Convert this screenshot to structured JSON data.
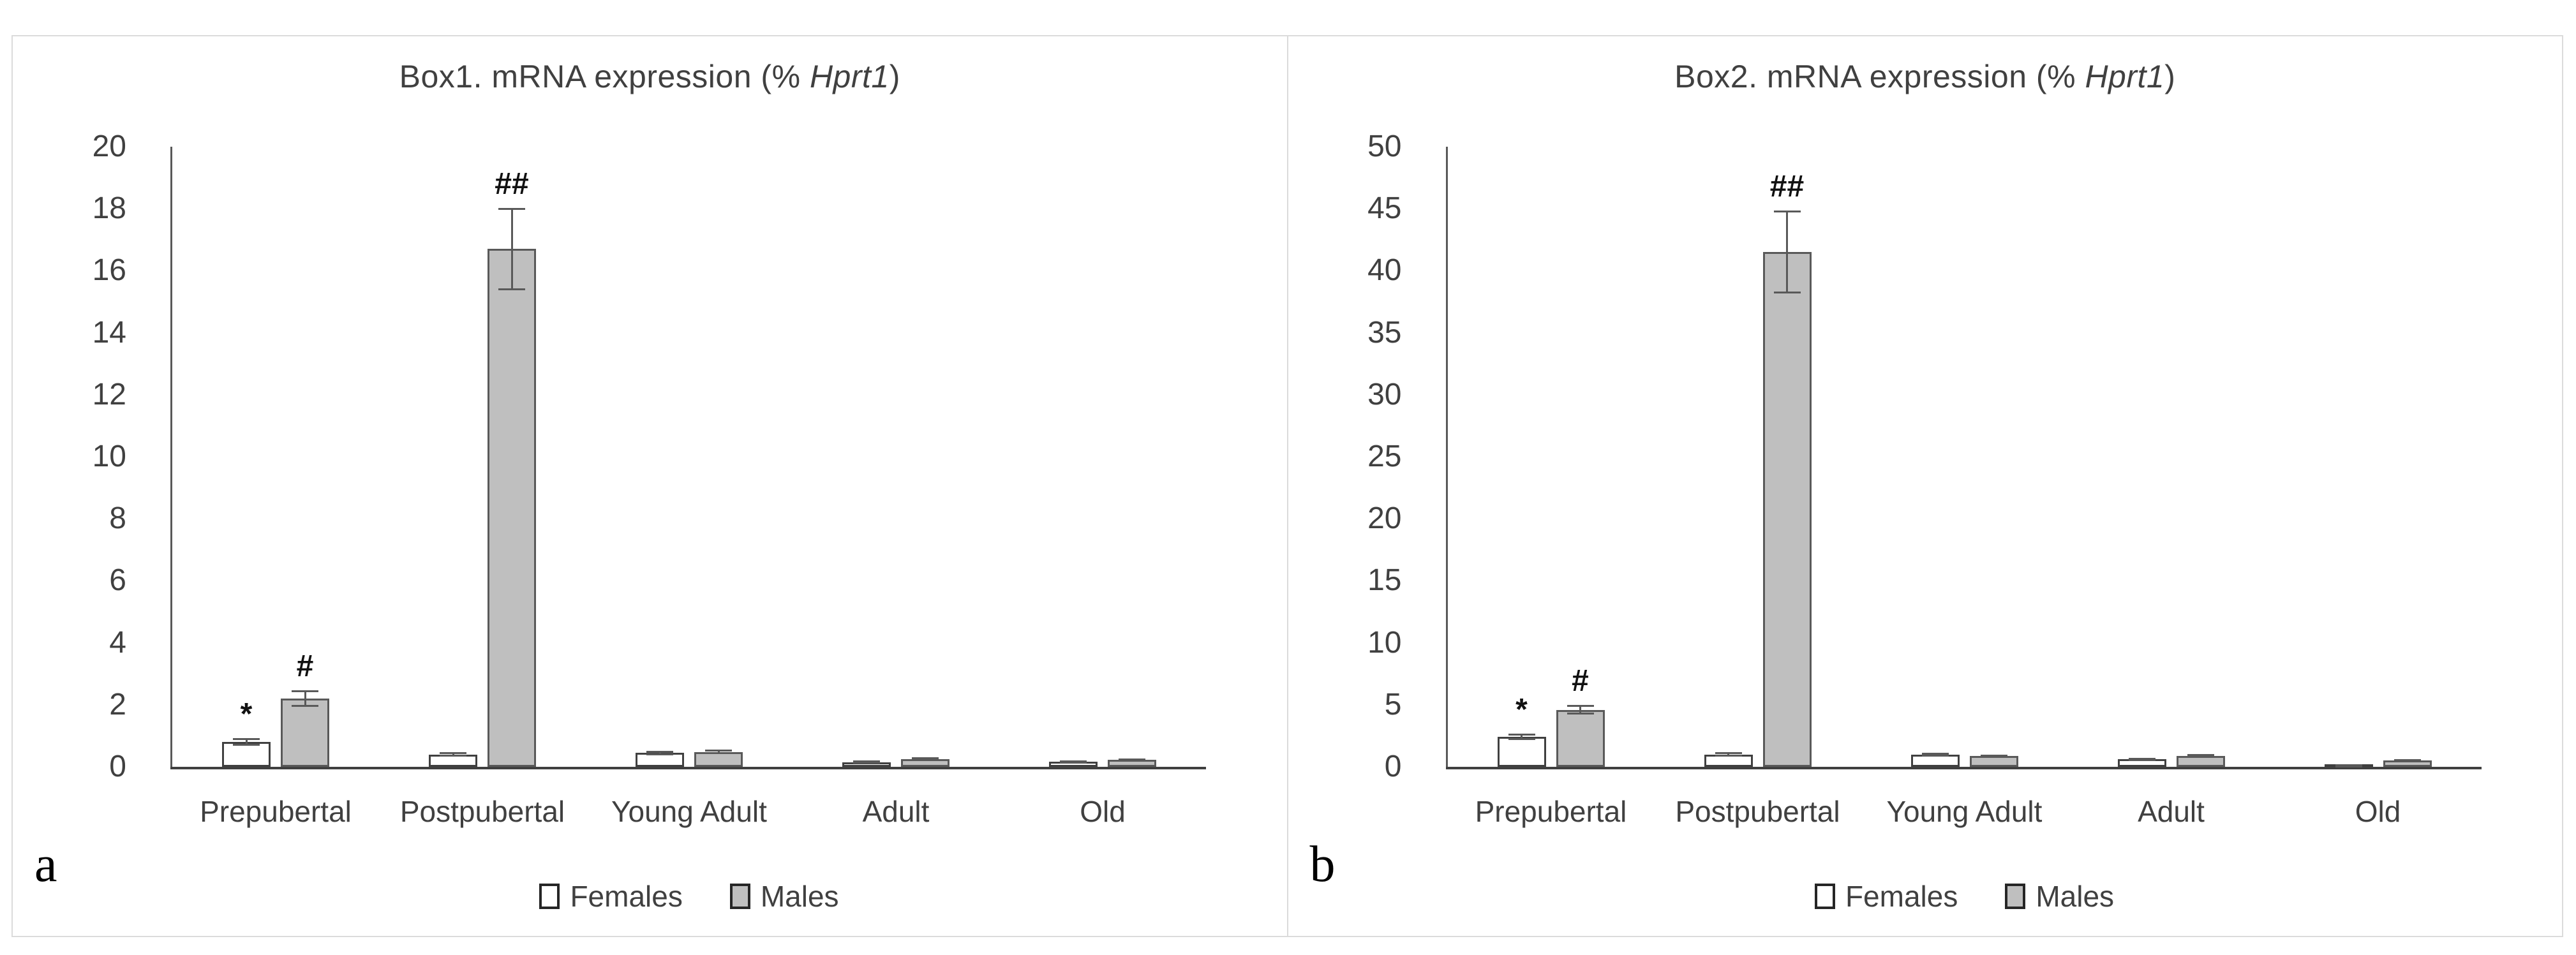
{
  "figure": {
    "background": "#FFFFFF",
    "frame_border_color": "#DBDBDB",
    "text_color": "#404040",
    "axis_color": "#595959",
    "baseline_color": "#404040",
    "error_bar_color": "#595959"
  },
  "chart_data": [
    {
      "type": "bar",
      "panel_letter": "a",
      "title": "Box1. mRNA expression (% Hprt1)",
      "title_prefix": "Box1. mRNA expression (% ",
      "title_italic": "Hprt1",
      "title_suffix": ")",
      "categories": [
        "Prepubertal",
        "Postpubertal",
        "Young Adult",
        "Adult",
        "Old"
      ],
      "series": [
        {
          "name": "Females",
          "fill": "#FFFFFF",
          "border": "#404040",
          "values": [
            0.8,
            0.4,
            0.45,
            0.15,
            0.16
          ],
          "errors": [
            0.1,
            0.06,
            0.05,
            0.03,
            0.03
          ],
          "annotations": [
            "*",
            "",
            "",
            "",
            ""
          ]
        },
        {
          "name": "Males",
          "fill": "#BFBFBF",
          "border": "#595959",
          "values": [
            2.2,
            16.7,
            0.48,
            0.25,
            0.22
          ],
          "errors": [
            0.25,
            1.3,
            0.05,
            0.04,
            0.03
          ],
          "annotations": [
            "#",
            "##",
            "",
            "",
            ""
          ]
        }
      ],
      "ylabel": "",
      "xlabel": "",
      "ylim": [
        0,
        20
      ],
      "ytick_step": 2,
      "grid": false,
      "legend_position": "bottom"
    },
    {
      "type": "bar",
      "panel_letter": "b",
      "title": "Box2. mRNA expression (% Hprt1)",
      "title_prefix": "Box2. mRNA expression (% ",
      "title_italic": "Hprt1",
      "title_suffix": ")",
      "categories": [
        "Prepubertal",
        "Postpubertal",
        "Young Adult",
        "Adult",
        "Old"
      ],
      "series": [
        {
          "name": "Females",
          "fill": "#FFFFFF",
          "border": "#404040",
          "values": [
            2.4,
            1.0,
            1.0,
            0.6,
            0.12
          ],
          "errors": [
            0.2,
            0.12,
            0.1,
            0.08,
            0.02
          ],
          "annotations": [
            "*",
            "",
            "",
            "",
            ""
          ]
        },
        {
          "name": "Males",
          "fill": "#BFBFBF",
          "border": "#595959",
          "values": [
            4.6,
            41.5,
            0.85,
            0.9,
            0.5
          ],
          "errors": [
            0.35,
            3.3,
            0.1,
            0.1,
            0.07
          ],
          "annotations": [
            "#",
            "##",
            "",
            "",
            ""
          ]
        }
      ],
      "ylabel": "",
      "xlabel": "",
      "ylim": [
        0,
        50
      ],
      "ytick_step": 5,
      "grid": false,
      "legend_position": "bottom"
    }
  ]
}
